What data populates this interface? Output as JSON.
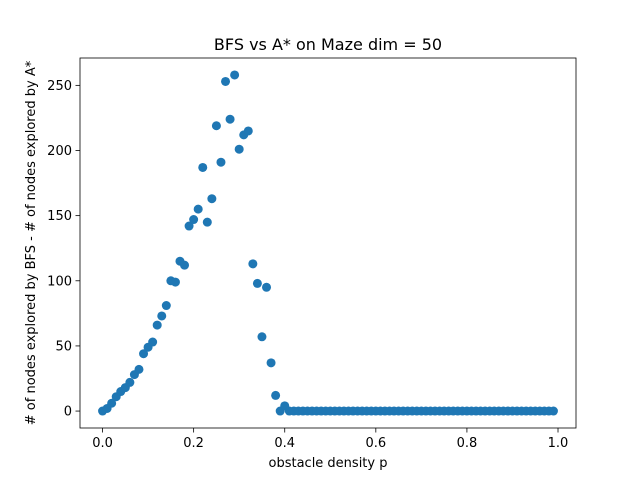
{
  "chart_data": {
    "type": "scatter",
    "title": "BFS vs A* on Maze dim = 50",
    "xlabel": "obstacle density p",
    "ylabel": "# of nodes explored by BFS - # of nodes explored by A*",
    "xlim": [
      -0.0495,
      1.0395
    ],
    "ylim": [
      -13,
      271
    ],
    "xticks": [
      0.0,
      0.2,
      0.4,
      0.6,
      0.8,
      1.0
    ],
    "xtick_labels": [
      "0.0",
      "0.2",
      "0.4",
      "0.6",
      "0.8",
      "1.0"
    ],
    "yticks": [
      0,
      50,
      100,
      150,
      200,
      250
    ],
    "ytick_labels": [
      "0",
      "50",
      "100",
      "150",
      "200",
      "250"
    ],
    "grid": false,
    "legend": "none",
    "marker_color": "#1f77b4",
    "series": [
      {
        "x": [
          0.0,
          0.01,
          0.02,
          0.03,
          0.04,
          0.05,
          0.06,
          0.07,
          0.08,
          0.09,
          0.1,
          0.11,
          0.12,
          0.13,
          0.14,
          0.15,
          0.16,
          0.17,
          0.18,
          0.19,
          0.2,
          0.21,
          0.22,
          0.23,
          0.24,
          0.25,
          0.26,
          0.27,
          0.28,
          0.29,
          0.3,
          0.31,
          0.32,
          0.33,
          0.34,
          0.35,
          0.36,
          0.37,
          0.38,
          0.39,
          0.4,
          0.41,
          0.42,
          0.43,
          0.44,
          0.45,
          0.46,
          0.47,
          0.48,
          0.49,
          0.5,
          0.51,
          0.52,
          0.53,
          0.54,
          0.55,
          0.56,
          0.57,
          0.58,
          0.59,
          0.6,
          0.61,
          0.62,
          0.63,
          0.64,
          0.65,
          0.66,
          0.67,
          0.68,
          0.69,
          0.7,
          0.71,
          0.72,
          0.73,
          0.74,
          0.75,
          0.76,
          0.77,
          0.78,
          0.79,
          0.8,
          0.81,
          0.82,
          0.83,
          0.84,
          0.85,
          0.86,
          0.87,
          0.88,
          0.89,
          0.9,
          0.91,
          0.92,
          0.93,
          0.94,
          0.95,
          0.96,
          0.97,
          0.98,
          0.99
        ],
        "y": [
          0,
          2,
          6,
          11,
          15,
          18,
          22,
          28,
          32,
          44,
          49,
          53,
          66,
          73,
          81,
          100,
          99,
          115,
          112,
          142,
          147,
          155,
          187,
          145,
          163,
          219,
          191,
          253,
          224,
          258,
          201,
          212,
          215,
          113,
          98,
          57,
          95,
          37,
          12,
          0,
          4,
          0,
          0,
          0,
          0,
          0,
          0,
          0,
          0,
          0,
          0,
          0,
          0,
          0,
          0,
          0,
          0,
          0,
          0,
          0,
          0,
          0,
          0,
          0,
          0,
          0,
          0,
          0,
          0,
          0,
          0,
          0,
          0,
          0,
          0,
          0,
          0,
          0,
          0,
          0,
          0,
          0,
          0,
          0,
          0,
          0,
          0,
          0,
          0,
          0,
          0,
          0,
          0,
          0,
          0,
          0,
          0,
          0,
          0,
          0
        ]
      }
    ]
  }
}
